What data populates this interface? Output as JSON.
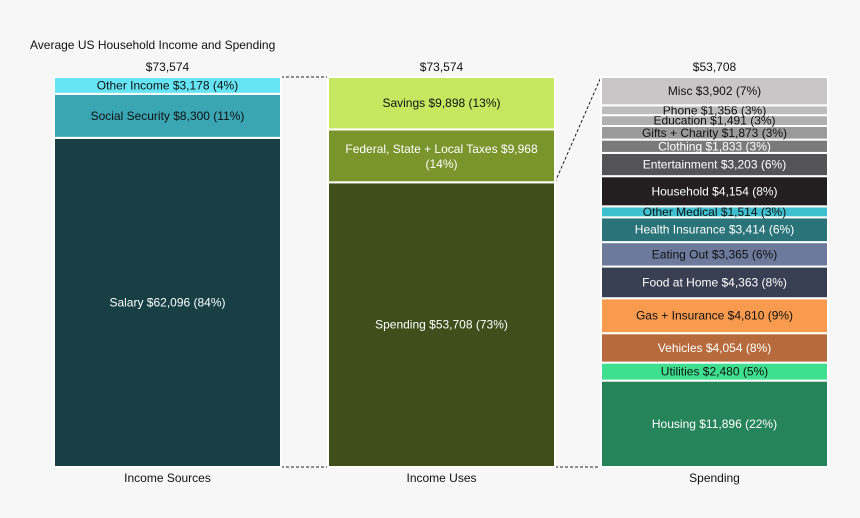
{
  "chart_data": {
    "type": "bar",
    "subtype": "stacked-100-breakdown",
    "title": "Average US Household Income and Spending",
    "grid": false,
    "legend": "none",
    "categories": [
      "Income Sources",
      "Income Uses",
      "Spending"
    ],
    "columns": [
      {
        "category": "Income Sources",
        "total_label": "$73,574",
        "total": 73574,
        "segments": [
          {
            "name": "Salary",
            "value": 62096,
            "label": "Salary $62,096 (84%)",
            "color": "#173f44",
            "text_color": "#ffffff"
          },
          {
            "name": "Social Security",
            "value": 8300,
            "label": "Social Security $8,300 (11%)",
            "color": "#3aa6b4",
            "text_color": "#111111"
          },
          {
            "name": "Other Income",
            "value": 3178,
            "label": "Other Income $3,178 (4%)",
            "color": "#66e6f5",
            "text_color": "#111111"
          }
        ]
      },
      {
        "category": "Income Uses",
        "total_label": "$73,574",
        "total": 73574,
        "segments": [
          {
            "name": "Spending",
            "value": 53708,
            "label": "Spending $53,708 (73%)",
            "color": "#3e4f1c",
            "text_color": "#ffffff"
          },
          {
            "name": "Federal, State + Local Taxes",
            "value": 9968,
            "label": "Federal, State + Local Taxes $9,968 (14%)",
            "color": "#7a952c",
            "text_color": "#ffffff"
          },
          {
            "name": "Savings",
            "value": 9898,
            "label": "Savings $9,898 (13%)",
            "color": "#c5e860",
            "text_color": "#111111"
          }
        ]
      },
      {
        "category": "Spending",
        "total_label": "$53,708",
        "total": 53708,
        "segments": [
          {
            "name": "Housing",
            "value": 11896,
            "label": "Housing $11,896 (22%)",
            "color": "#26845a",
            "text_color": "#ffffff"
          },
          {
            "name": "Utilities",
            "value": 2480,
            "label": "Utilities $2,480 (5%)",
            "color": "#3ee08f",
            "text_color": "#111111"
          },
          {
            "name": "Vehicles",
            "value": 4054,
            "label": "Vehicles $4,054 (8%)",
            "color": "#b76b3c",
            "text_color": "#ffffff"
          },
          {
            "name": "Gas + Insurance",
            "value": 4810,
            "label": "Gas + Insurance $4,810 (9%)",
            "color": "#f99b4e",
            "text_color": "#111111"
          },
          {
            "name": "Food at Home",
            "value": 4363,
            "label": "Food at Home $4,363 (8%)",
            "color": "#383f52",
            "text_color": "#ffffff"
          },
          {
            "name": "Eating Out",
            "value": 3365,
            "label": "Eating Out $3,365 (6%)",
            "color": "#6d7a9c",
            "text_color": "#111111"
          },
          {
            "name": "Health Insurance",
            "value": 3414,
            "label": "Health Insurance $3,414 (6%)",
            "color": "#2a7378",
            "text_color": "#ffffff"
          },
          {
            "name": "Other Medical",
            "value": 1514,
            "label": "Other Medical $1,514 (3%)",
            "color": "#3fc0d0",
            "text_color": "#111111"
          },
          {
            "name": "Household",
            "value": 4154,
            "label": "Household $4,154 (8%)",
            "color": "#231f20",
            "text_color": "#ffffff"
          },
          {
            "name": "Entertainment",
            "value": 3203,
            "label": "Entertainment $3,203 (6%)",
            "color": "#545457",
            "text_color": "#ffffff"
          },
          {
            "name": "Clothing",
            "value": 1833,
            "label": "Clothing $1,833 (3%)",
            "color": "#7a7a7a",
            "text_color": "#ffffff"
          },
          {
            "name": "Gifts + Charity",
            "value": 1873,
            "label": "Gifts + Charity $1,873 (3%)",
            "color": "#9b9b9b",
            "text_color": "#111111"
          },
          {
            "name": "Education",
            "value": 1491,
            "label": "Education $1,491 (3%)",
            "color": "#b0b0b0",
            "text_color": "#111111"
          },
          {
            "name": "Phone",
            "value": 1356,
            "label": "Phone $1,356 (3%)",
            "color": "#bdbdbd",
            "text_color": "#111111"
          },
          {
            "name": "Misc",
            "value": 3902,
            "label": "Misc $3,902 (7%)",
            "color": "#c8c6c7",
            "text_color": "#111111"
          }
        ]
      }
    ]
  }
}
